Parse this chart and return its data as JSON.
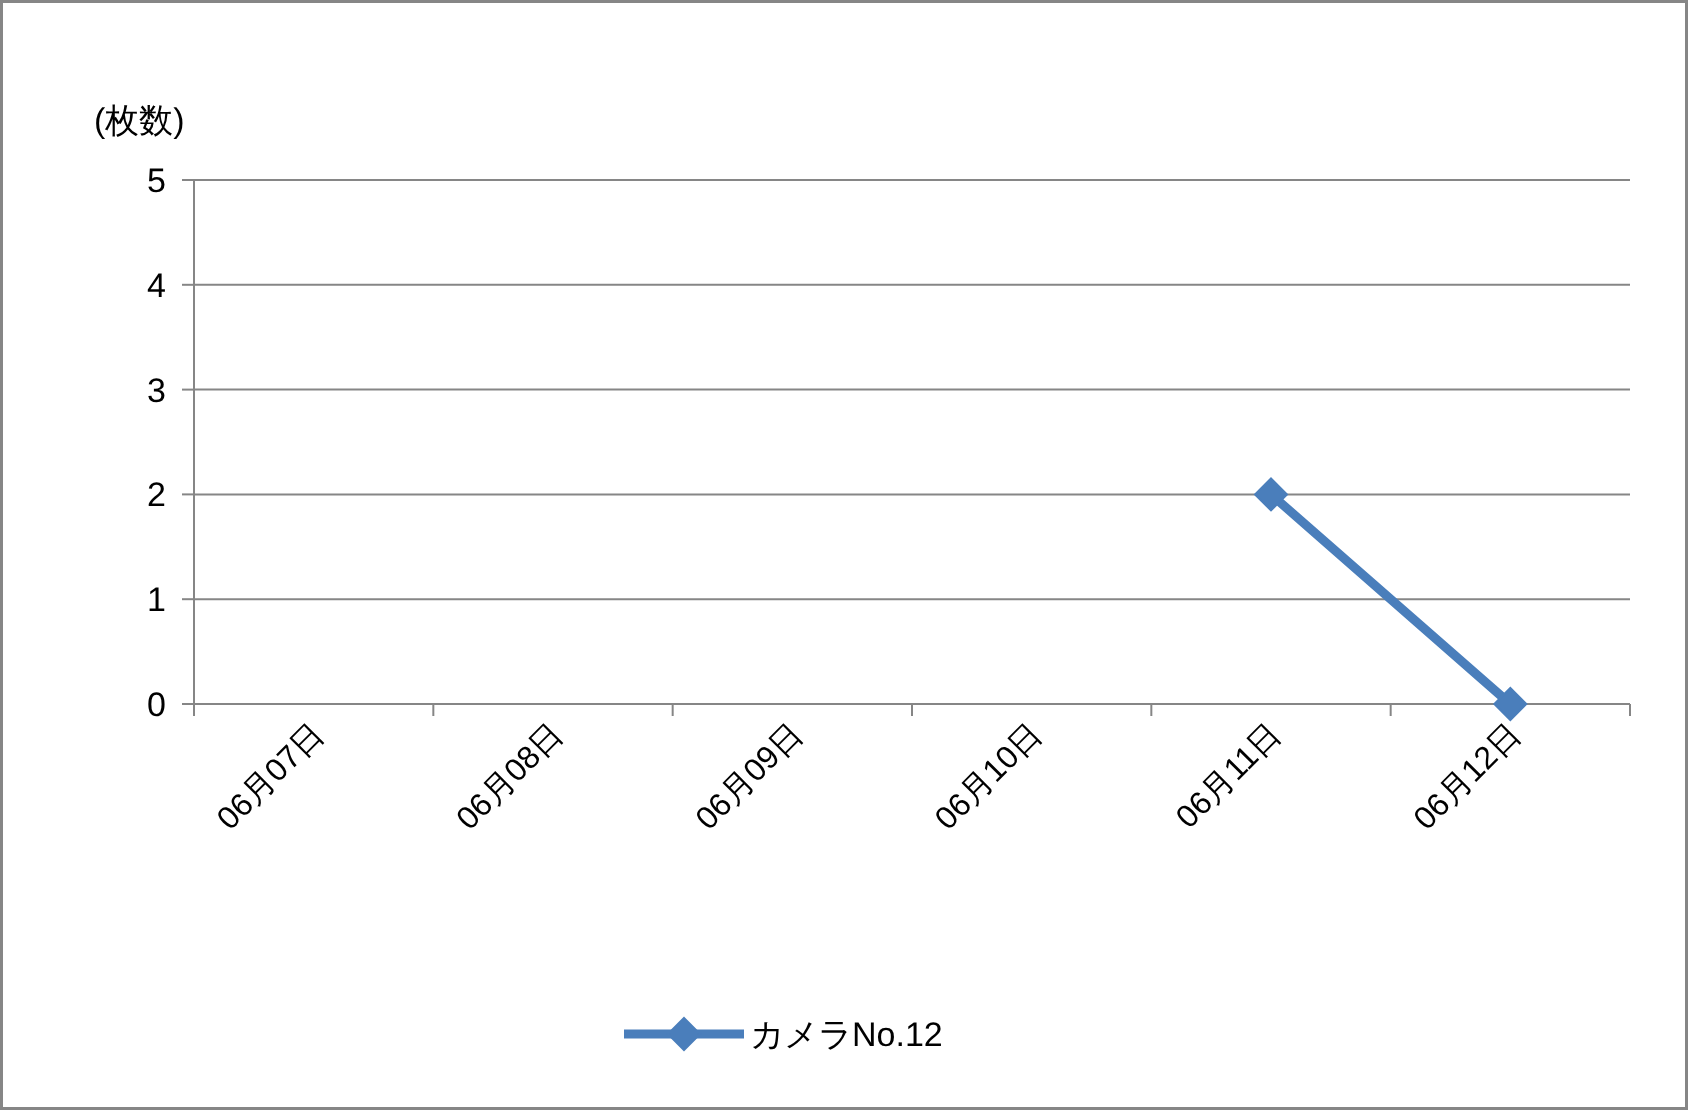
{
  "chart_data": {
    "type": "line",
    "ylabel": "(枚数)",
    "categories": [
      "06月07日",
      "06月08日",
      "06月09日",
      "06月10日",
      "06月11日",
      "06月12日"
    ],
    "series": [
      {
        "name": "カメラNo.12",
        "color": "#4a7ebb",
        "values": [
          null,
          null,
          null,
          null,
          2,
          0
        ]
      }
    ],
    "ylim": [
      0,
      5
    ],
    "yticks": [
      0,
      1,
      2,
      3,
      4,
      5
    ],
    "grid": "y",
    "legend": "bottom",
    "marker": "diamond"
  }
}
